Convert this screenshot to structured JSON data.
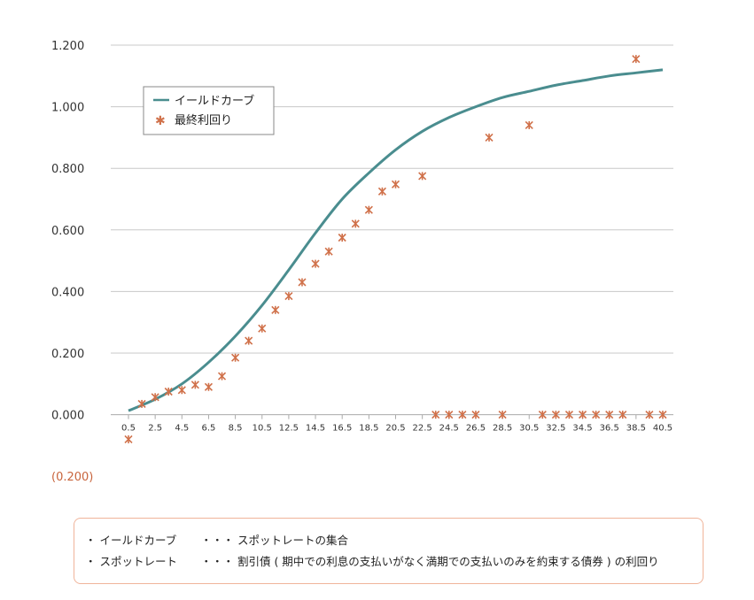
{
  "chart_data": {
    "type": "line+scatter",
    "title": "",
    "xlabel": "",
    "ylabel": "",
    "ylim": [
      -0.2,
      1.2
    ],
    "yticks": [
      "1.200",
      "1.000",
      "0.800",
      "0.600",
      "0.400",
      "0.200",
      "0.000",
      "(0.200)"
    ],
    "ytick_values": [
      1.2,
      1.0,
      0.8,
      0.6,
      0.4,
      0.2,
      0.0,
      -0.2
    ],
    "xticks": [
      "0.5",
      "2.5",
      "4.5",
      "6.5",
      "8.5",
      "10.5",
      "12.5",
      "14.5",
      "16.5",
      "18.5",
      "20.5",
      "22.5",
      "24.5",
      "26.5",
      "28.5",
      "30.5",
      "32.5",
      "34.5",
      "36.5",
      "38.5",
      "40.5"
    ],
    "xtick_values": [
      0.5,
      2.5,
      4.5,
      6.5,
      8.5,
      10.5,
      12.5,
      14.5,
      16.5,
      18.5,
      20.5,
      22.5,
      24.5,
      26.5,
      28.5,
      30.5,
      32.5,
      34.5,
      36.5,
      38.5,
      40.5
    ],
    "grid": true,
    "legend_position": "top-left",
    "series": [
      {
        "name": "イールドカーブ",
        "type": "line",
        "color": "#4a8d8f",
        "x": [
          0.5,
          2.5,
          4.5,
          6.5,
          8.5,
          10.5,
          12.5,
          14.5,
          16.5,
          18.5,
          20.5,
          22.5,
          24.5,
          26.5,
          28.5,
          30.5,
          32.5,
          34.5,
          36.5,
          38.5,
          40.5
        ],
        "y": [
          0.013,
          0.05,
          0.1,
          0.17,
          0.255,
          0.355,
          0.47,
          0.59,
          0.7,
          0.785,
          0.86,
          0.92,
          0.965,
          1.0,
          1.03,
          1.05,
          1.07,
          1.085,
          1.1,
          1.11,
          1.12
        ]
      },
      {
        "name": "最終利回り",
        "type": "scatter",
        "color": "#d0714a",
        "x": [
          0.5,
          1.5,
          2.5,
          3.5,
          4.5,
          5.5,
          6.5,
          7.5,
          8.5,
          9.5,
          10.5,
          11.5,
          12.5,
          13.5,
          14.5,
          15.5,
          16.5,
          17.5,
          18.5,
          19.5,
          20.5,
          22.5,
          23.5,
          24.5,
          25.5,
          26.5,
          27.5,
          28.5,
          30.5,
          31.5,
          32.5,
          33.5,
          34.5,
          35.5,
          36.5,
          37.5,
          38.5,
          39.5,
          40.5
        ],
        "y": [
          -0.08,
          0.035,
          0.057,
          0.075,
          0.08,
          0.097,
          0.09,
          0.125,
          0.185,
          0.24,
          0.28,
          0.34,
          0.385,
          0.43,
          0.49,
          0.53,
          0.575,
          0.62,
          0.665,
          0.725,
          0.748,
          0.775,
          0.0,
          0.0,
          0.0,
          0.0,
          0.9,
          0.0,
          0.94,
          0.0,
          0.0,
          0.0,
          0.0,
          0.0,
          0.0,
          0.0,
          1.155,
          0.0,
          0.0
        ]
      }
    ]
  },
  "notes": [
    {
      "bullet": "・",
      "term": "イールドカーブ",
      "sep": "・・・",
      "desc": "スポットレートの集合"
    },
    {
      "bullet": "・",
      "term": "スポットレート",
      "sep": "・・・",
      "desc": "割引債 ( 期中での利息の支払いがなく満期での支払いのみを約束する債券 ) の利回り"
    }
  ]
}
